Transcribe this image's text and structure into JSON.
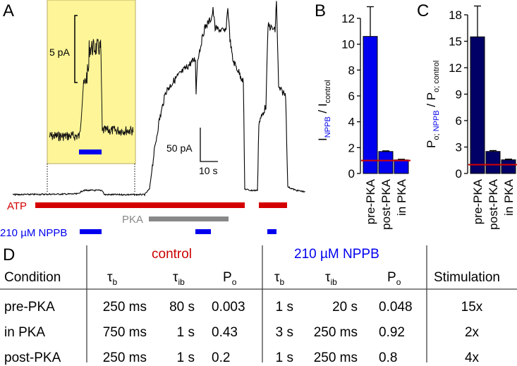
{
  "panels": {
    "A": "A",
    "B": "B",
    "C": "C",
    "D": "D"
  },
  "panel_a": {
    "inset_scale_label": "5 pA",
    "scale_y_label": "50 pA",
    "scale_x_label": "10 s",
    "inset_bg": "#fdf597",
    "bars": [
      {
        "label": "ATP",
        "color": "#d40000"
      },
      {
        "label": "PKA",
        "color": "#888888"
      },
      {
        "label": "210 µM NPPB",
        "color": "#0000ee"
      }
    ]
  },
  "chart_data": [
    {
      "type": "bar",
      "panel": "B",
      "ylabel": "I_NPPB / I_control",
      "ylabel_main": "I",
      "ylabel_sub1": "NPPB",
      "ylabel_sep": " / I",
      "ylabel_sub2": "control",
      "categories": [
        "pre-PKA",
        "post-PKA",
        "in PKA"
      ],
      "values": [
        10.6,
        1.7,
        1.05
      ],
      "errors": [
        2.3,
        0.05,
        0.05
      ],
      "ylim": [
        0,
        12
      ],
      "yticks": [
        "0",
        "2",
        "4",
        "6",
        "8",
        "10",
        "12"
      ],
      "reference_line": 1,
      "bar_color": "#0000ee",
      "reference_color": "#d40000"
    },
    {
      "type": "bar",
      "panel": "C",
      "ylabel": "P_o;NPPB / P_o;control",
      "ylabel_main": "P",
      "ylabel_sub1a": "o; ",
      "ylabel_sub1b": "NPPB",
      "ylabel_sep": " / P",
      "ylabel_sub2": "o; control",
      "categories": [
        "pre-PKA",
        "post-PKA",
        "in PKA"
      ],
      "values": [
        15.5,
        2.5,
        1.55
      ],
      "errors": [
        3.5,
        0.1,
        0.08
      ],
      "ylim": [
        0,
        18
      ],
      "yticks": [
        "0",
        "3",
        "6",
        "9",
        "12",
        "15",
        "18"
      ],
      "reference_line": 1,
      "bar_color": "#000066",
      "reference_color": "#d40000"
    }
  ],
  "table": {
    "group_control": "control",
    "group_nppb": "210 µM NPPB",
    "control_color": "#cc0000",
    "nppb_color": "#0000ee",
    "col_condition": "Condition",
    "col_tau": "τ",
    "sub_b": "b",
    "sub_ib": "ib",
    "col_p": "P",
    "sub_o": "o",
    "col_stimulation": "Stimulation",
    "rows": [
      {
        "condition": "pre-PKA",
        "c_tb": "250 ms",
        "c_tib": "80 s",
        "c_po": "0.003",
        "n_tb": "1 s",
        "n_tib": "20 s",
        "n_po": "0.048",
        "stim": "15x"
      },
      {
        "condition": "in PKA",
        "c_tb": "750 ms",
        "c_tib": "1 s",
        "c_po": "0.43",
        "n_tb": "3 s",
        "n_tib": "250 ms",
        "n_po": "0.92",
        "stim": "2x"
      },
      {
        "condition": "post-PKA",
        "c_tb": "250 ms",
        "c_tib": "1 s",
        "c_po": "0.2",
        "n_tb": "1 s",
        "n_tib": "250 ms",
        "n_po": "0.8",
        "stim": "4x"
      }
    ]
  }
}
